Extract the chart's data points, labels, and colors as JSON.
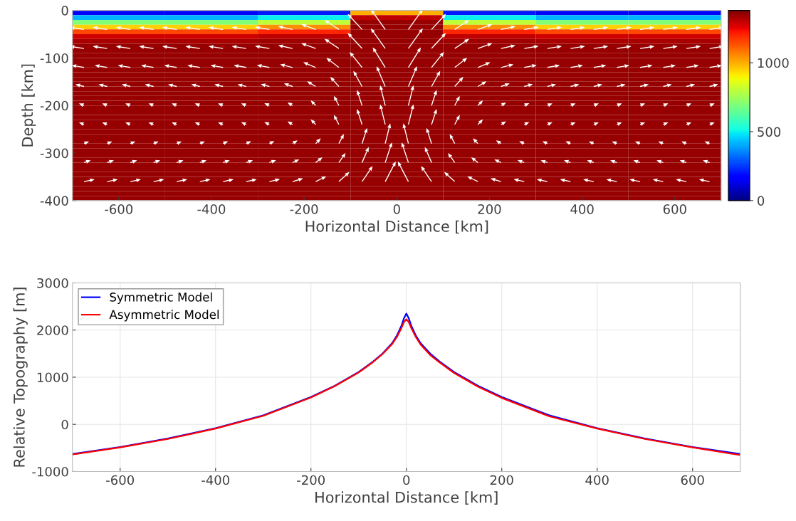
{
  "chart_data": [
    {
      "type": "heatmap",
      "xlabel": "Horizontal Distance [km]",
      "ylabel": "Depth [km]",
      "cells": [
        [
          150,
          150,
          200,
          1000,
          200,
          150,
          150
        ],
        [
          420,
          420,
          500,
          1300,
          500,
          420,
          420
        ],
        [
          700,
          700,
          800,
          1350,
          800,
          700,
          700
        ],
        [
          950,
          950,
          1050,
          1350,
          1050,
          950,
          950
        ],
        [
          1150,
          1150,
          1200,
          1350,
          1200,
          1150,
          1150
        ],
        [
          1280,
          1280,
          1300,
          1350,
          1300,
          1280,
          1280
        ],
        [
          1330,
          1330,
          1340,
          1350,
          1340,
          1330,
          1330
        ],
        [
          1350,
          1350,
          1350,
          1350,
          1350,
          1350,
          1350
        ],
        [
          1350,
          1350,
          1350,
          1350,
          1350,
          1350,
          1350
        ],
        [
          1350,
          1350,
          1350,
          1350,
          1350,
          1350,
          1350
        ],
        [
          1350,
          1350,
          1350,
          1350,
          1350,
          1350,
          1350
        ],
        [
          1350,
          1350,
          1350,
          1350,
          1350,
          1350,
          1350
        ],
        [
          1350,
          1350,
          1350,
          1350,
          1350,
          1350,
          1350
        ],
        [
          1350,
          1350,
          1350,
          1350,
          1350,
          1350,
          1350
        ],
        [
          1350,
          1350,
          1350,
          1350,
          1350,
          1350,
          1350
        ],
        [
          1350,
          1350,
          1350,
          1350,
          1350,
          1350,
          1350
        ],
        [
          1350,
          1350,
          1350,
          1350,
          1350,
          1350,
          1350
        ],
        [
          1350,
          1350,
          1350,
          1350,
          1350,
          1350,
          1350
        ],
        [
          1350,
          1350,
          1350,
          1350,
          1350,
          1350,
          1350
        ],
        [
          1350,
          1350,
          1350,
          1350,
          1350,
          1350,
          1350
        ],
        [
          1350,
          1350,
          1350,
          1350,
          1350,
          1350,
          1350
        ],
        [
          1350,
          1350,
          1350,
          1350,
          1350,
          1350,
          1350
        ],
        [
          1350,
          1350,
          1350,
          1350,
          1350,
          1350,
          1350
        ],
        [
          1350,
          1350,
          1350,
          1350,
          1350,
          1350,
          1350
        ],
        [
          1350,
          1350,
          1350,
          1350,
          1350,
          1350,
          1350
        ],
        [
          1350,
          1350,
          1350,
          1350,
          1350,
          1350,
          1350
        ],
        [
          1350,
          1350,
          1350,
          1350,
          1350,
          1350,
          1350
        ],
        [
          1350,
          1350,
          1350,
          1350,
          1350,
          1350,
          1350
        ],
        [
          1350,
          1350,
          1350,
          1350,
          1350,
          1350,
          1350
        ],
        [
          1350,
          1350,
          1350,
          1350,
          1350,
          1350,
          1350
        ],
        [
          1350,
          1350,
          1350,
          1350,
          1350,
          1350,
          1350
        ],
        [
          1350,
          1350,
          1350,
          1350,
          1350,
          1350,
          1350
        ],
        [
          1350,
          1350,
          1350,
          1350,
          1350,
          1350,
          1350
        ],
        [
          1350,
          1350,
          1350,
          1350,
          1350,
          1350,
          1350
        ],
        [
          1350,
          1350,
          1350,
          1350,
          1350,
          1350,
          1350
        ],
        [
          1350,
          1350,
          1350,
          1350,
          1350,
          1350,
          1350
        ],
        [
          1350,
          1350,
          1350,
          1350,
          1350,
          1350,
          1350
        ],
        [
          1350,
          1350,
          1350,
          1350,
          1350,
          1350,
          1350
        ],
        [
          1350,
          1350,
          1350,
          1350,
          1350,
          1350,
          1350
        ],
        [
          1350,
          1350,
          1350,
          1350,
          1350,
          1350,
          1350
        ]
      ],
      "xlim": [
        -700,
        700
      ],
      "xticks": [
        -600,
        -400,
        -200,
        0,
        200,
        400,
        600
      ],
      "ylim": [
        -400,
        0
      ],
      "yticks": [
        -400,
        -300,
        -200,
        -100,
        0
      ],
      "clim": [
        0,
        1380
      ],
      "cticks": [
        0,
        500,
        1000
      ]
    },
    {
      "type": "line",
      "xlabel": "Horizontal Distance [km]",
      "ylabel": "Relative Topography [m]",
      "series": [
        {
          "name": "Symmetric Model",
          "color": "#0000ff",
          "x": [
            -700,
            -600,
            -500,
            -400,
            -300,
            -200,
            -150,
            -100,
            -70,
            -50,
            -30,
            -20,
            -10,
            -5,
            0,
            5,
            10,
            20,
            30,
            50,
            70,
            100,
            150,
            200,
            300,
            400,
            500,
            600,
            700
          ],
          "values": [
            -630,
            -480,
            -300,
            -80,
            190,
            580,
            820,
            1110,
            1330,
            1500,
            1720,
            1880,
            2100,
            2250,
            2350,
            2250,
            2100,
            1880,
            1720,
            1500,
            1330,
            1110,
            820,
            580,
            190,
            -80,
            -300,
            -480,
            -630
          ]
        },
        {
          "name": "Asymmetric Model",
          "color": "#ff0000",
          "x": [
            -700,
            -600,
            -500,
            -400,
            -300,
            -200,
            -150,
            -100,
            -70,
            -50,
            -30,
            -20,
            -10,
            -5,
            0,
            5,
            10,
            20,
            30,
            50,
            70,
            100,
            150,
            200,
            300,
            400,
            500,
            600,
            700
          ],
          "values": [
            -640,
            -490,
            -310,
            -90,
            180,
            570,
            810,
            1100,
            1320,
            1490,
            1700,
            1850,
            2050,
            2170,
            2230,
            2170,
            2050,
            1850,
            1690,
            1470,
            1310,
            1090,
            800,
            560,
            170,
            -90,
            -310,
            -490,
            -650
          ]
        }
      ],
      "xlim": [
        -700,
        700
      ],
      "xticks": [
        -600,
        -400,
        -200,
        0,
        200,
        400,
        600
      ],
      "ylim": [
        -1000,
        3000
      ],
      "yticks": [
        -1000,
        0,
        1000,
        2000,
        3000
      ],
      "grid": true,
      "legend": "top left"
    }
  ]
}
